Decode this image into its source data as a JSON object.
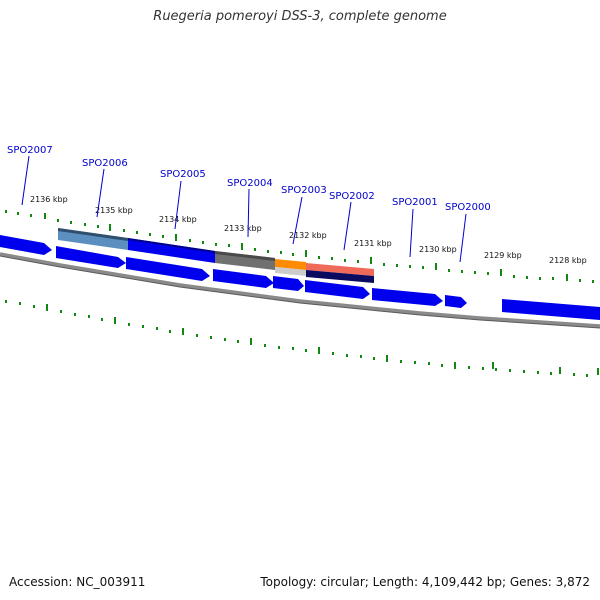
{
  "header": {
    "title": "Ruegeria pomeroyi DSS-3, complete genome"
  },
  "footer": {
    "accession": "Accession: NC_003911",
    "summary": "Topology: circular; Length: 4,109,442 bp; Genes: 3,872"
  },
  "colors": {
    "gene_blue": "#0000ee",
    "backbone": "#888888",
    "tick_green": "#118811",
    "label_blue": "#0000cc",
    "feature_steelblue": "#5b8fc0",
    "feature_grey": "#707070",
    "feature_orange": "#ff8c00",
    "feature_red": "#f06a5a",
    "feature_navy": "#0a0a60"
  },
  "scale_labels": [
    "2136 kbp",
    "2135 kbp",
    "2134 kbp",
    "2133 kbp",
    "2132 kbp",
    "2131 kbp",
    "2130 kbp",
    "2129 kbp",
    "2128 kbp"
  ],
  "gene_labels": [
    "SPO2007",
    "SPO2006",
    "SPO2005",
    "SPO2004",
    "SPO2003",
    "SPO2002",
    "SPO2001",
    "SPO2000"
  ]
}
